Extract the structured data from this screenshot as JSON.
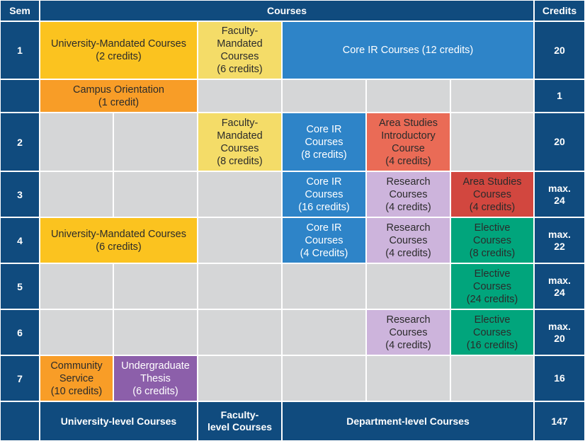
{
  "header": {
    "sem": "Sem",
    "courses": "Courses",
    "credits": "Credits"
  },
  "rows": [
    {
      "sem": "1",
      "credits": "20"
    },
    {
      "sem": "",
      "credits": "1"
    },
    {
      "sem": "2",
      "credits": "20"
    },
    {
      "sem": "3",
      "credits": "max.\n24"
    },
    {
      "sem": "4",
      "credits": "max.\n22"
    },
    {
      "sem": "5",
      "credits": "max.\n24"
    },
    {
      "sem": "6",
      "credits": "max.\n20"
    },
    {
      "sem": "7",
      "credits": "16"
    }
  ],
  "courses": [
    {
      "name": "univ-mandated-sem1",
      "kind": "uni",
      "row": 0,
      "col": 0,
      "colspan": 2,
      "label": "University-Mandated Courses\n(2 credits)"
    },
    {
      "name": "faculty-mandated-sem1",
      "kind": "fac",
      "row": 0,
      "col": 2,
      "colspan": 1,
      "label": "Faculty-\nMandated\nCourses\n(6 credits)"
    },
    {
      "name": "core-ir-sem1",
      "kind": "core",
      "row": 0,
      "col": 3,
      "colspan": 3,
      "label": "Core IR Courses (12 credits)"
    },
    {
      "name": "campus-orientation",
      "kind": "orient",
      "row": 1,
      "col": 0,
      "colspan": 2,
      "label": "Campus Orientation\n(1 credit)"
    },
    {
      "name": "faculty-mandated-sem2",
      "kind": "fac",
      "row": 2,
      "col": 2,
      "colspan": 1,
      "label": "Faculty-\nMandated\nCourses\n(8 credits)"
    },
    {
      "name": "core-ir-sem2",
      "kind": "core",
      "row": 2,
      "col": 3,
      "colspan": 1,
      "label": "Core IR\nCourses\n(8 credits)"
    },
    {
      "name": "area-intro-sem2",
      "kind": "area1",
      "row": 2,
      "col": 4,
      "colspan": 1,
      "label": "Area Studies\nIntroductory\nCourse\n(4 credits)"
    },
    {
      "name": "core-ir-sem3",
      "kind": "core",
      "row": 3,
      "col": 3,
      "colspan": 1,
      "label": "Core IR\nCourses\n(16 credits)"
    },
    {
      "name": "research-sem3",
      "kind": "research",
      "row": 3,
      "col": 4,
      "colspan": 1,
      "label": "Research\nCourses\n(4 credits)"
    },
    {
      "name": "area-studies-sem3",
      "kind": "area2",
      "row": 3,
      "col": 5,
      "colspan": 1,
      "label": "Area Studies\nCourses\n(4 credits)"
    },
    {
      "name": "univ-mandated-sem4",
      "kind": "uni",
      "row": 4,
      "col": 0,
      "colspan": 2,
      "label": "University-Mandated Courses\n(6 credits)"
    },
    {
      "name": "core-ir-sem4",
      "kind": "core",
      "row": 4,
      "col": 3,
      "colspan": 1,
      "label": "Core IR\nCourses\n(4 Credits)"
    },
    {
      "name": "research-sem4",
      "kind": "research",
      "row": 4,
      "col": 4,
      "colspan": 1,
      "label": "Research\nCourses\n(4 credits)"
    },
    {
      "name": "elective-sem4",
      "kind": "elective",
      "row": 4,
      "col": 5,
      "colspan": 1,
      "label": "Elective\nCourses\n(8 credits)"
    },
    {
      "name": "elective-sem5",
      "kind": "elective",
      "row": 5,
      "col": 5,
      "colspan": 1,
      "label": "Elective\nCourses\n(24 credits)"
    },
    {
      "name": "research-sem6",
      "kind": "research",
      "row": 6,
      "col": 4,
      "colspan": 1,
      "label": "Research\nCourses\n(4 credits)"
    },
    {
      "name": "elective-sem6",
      "kind": "elective",
      "row": 6,
      "col": 5,
      "colspan": 1,
      "label": "Elective\nCourses\n(16 credits)"
    },
    {
      "name": "community-service",
      "kind": "community",
      "row": 7,
      "col": 0,
      "colspan": 1,
      "label": "Community\nService\n(10 credits)"
    },
    {
      "name": "undergraduate-thesis",
      "kind": "thesis",
      "row": 7,
      "col": 1,
      "colspan": 1,
      "label": "Undergraduate\nThesis\n(6 credits)"
    }
  ],
  "footer": {
    "university": "University-level Courses",
    "faculty": "Faculty-\nlevel Courses",
    "department": "Department-level Courses",
    "total": "147"
  }
}
